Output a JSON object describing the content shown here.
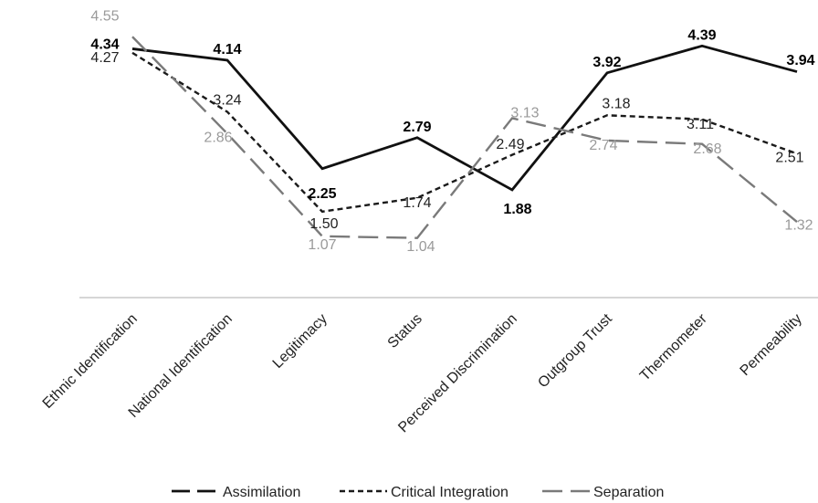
{
  "chart_data": {
    "type": "line",
    "title": "",
    "xlabel": "",
    "ylabel": "",
    "ylim": [
      0,
      5
    ],
    "grid": false,
    "legend_position": "bottom",
    "categories": [
      "Ethnic Identification",
      "National Identification",
      "Legitimacy",
      "Status",
      "Perceived Discrimination",
      "Outgroup Trust",
      "Thermometer",
      "Permeability"
    ],
    "series": [
      {
        "name": "Assimilation",
        "values": [
          4.34,
          4.14,
          2.25,
          2.79,
          1.88,
          3.92,
          4.39,
          3.94
        ],
        "labels": [
          "4.34",
          "4.14",
          "2.25",
          "2.79",
          "1.88",
          "3.92",
          "4.39",
          "3.94"
        ],
        "color": "#111111",
        "style": "solid-long-dash"
      },
      {
        "name": "Critical Integration",
        "values": [
          4.27,
          3.24,
          1.5,
          1.74,
          2.49,
          3.18,
          3.11,
          2.51
        ],
        "labels": [
          "4.27",
          "3.24",
          "1.50",
          "1.74",
          "2.49",
          "3.18",
          "3.11",
          "2.51"
        ],
        "color": "#1a1a1a",
        "style": "short-dash"
      },
      {
        "name": "Separation",
        "values": [
          4.55,
          2.86,
          1.07,
          1.04,
          3.13,
          2.74,
          2.68,
          1.32
        ],
        "labels": [
          "4.55",
          "2.86",
          "1.07",
          "1.04",
          "3.13",
          "2.74",
          "2.68",
          "1.32"
        ],
        "color": "#7a7a7a",
        "label_color": "#9a9a9a",
        "style": "long-dash"
      }
    ]
  }
}
